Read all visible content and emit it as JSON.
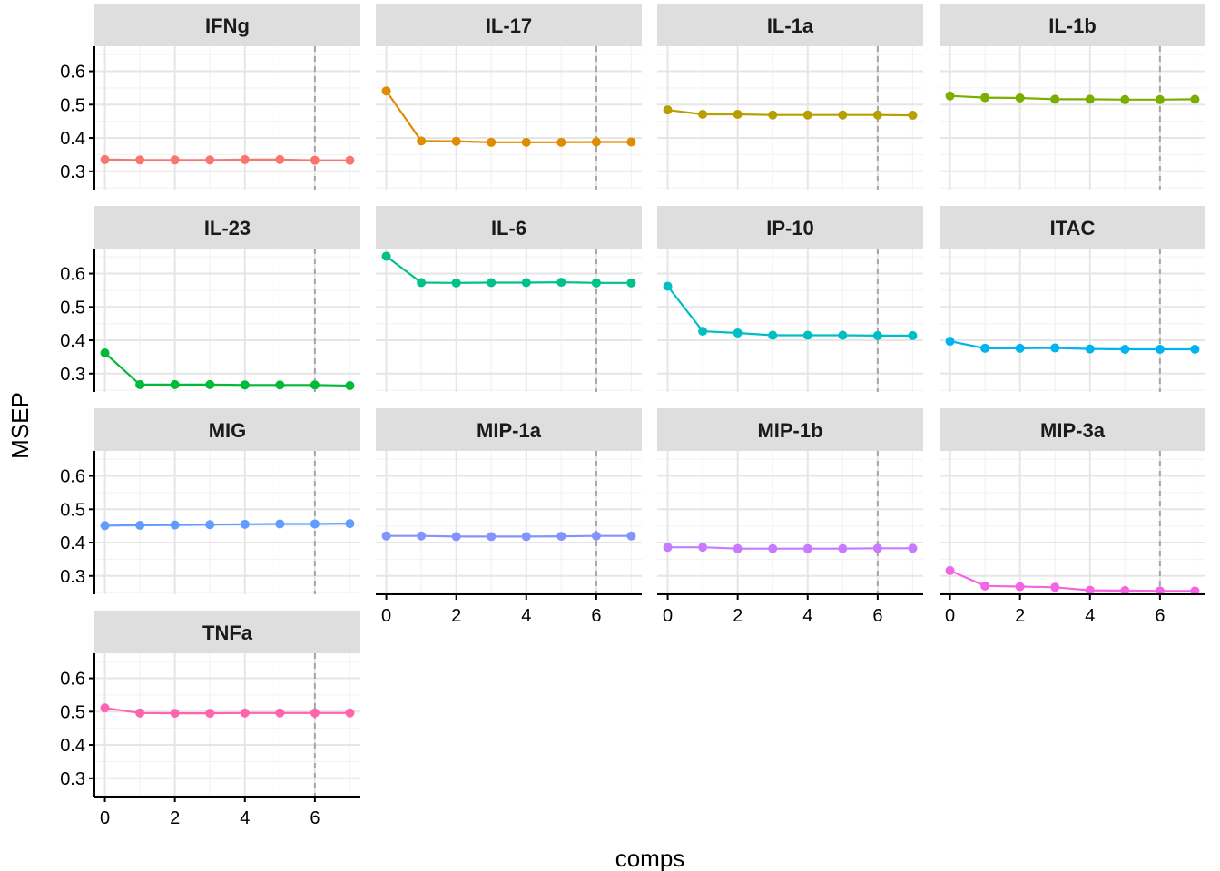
{
  "chart_data": {
    "type": "line",
    "xlabel": "comps",
    "ylabel": "MSEP",
    "xlim": [
      -0.3,
      7.3
    ],
    "ylim": [
      0.245,
      0.675
    ],
    "x_ticks": [
      0,
      2,
      4,
      6
    ],
    "y_ticks": [
      0.3,
      0.4,
      0.5,
      0.6
    ],
    "x_tick_labels": [
      "0",
      "2",
      "4",
      "6"
    ],
    "y_tick_labels": [
      "0.3",
      "0.4",
      "0.5",
      "0.6"
    ],
    "reference_line": {
      "x": 6,
      "style": "dashed",
      "color": "#a6a6a6"
    },
    "grid": true,
    "x": [
      0,
      1,
      2,
      3,
      4,
      5,
      6,
      7
    ],
    "panels": [
      {
        "name": "IFNg",
        "color": "#F8766D",
        "values": [
          0.335,
          0.334,
          0.334,
          0.334,
          0.335,
          0.335,
          0.333,
          0.333
        ]
      },
      {
        "name": "IL-17",
        "color": "#DE8C00",
        "values": [
          0.541,
          0.391,
          0.39,
          0.387,
          0.387,
          0.387,
          0.388,
          0.388
        ]
      },
      {
        "name": "IL-1a",
        "color": "#B79F00",
        "values": [
          0.484,
          0.471,
          0.471,
          0.469,
          0.469,
          0.469,
          0.469,
          0.468
        ]
      },
      {
        "name": "IL-1b",
        "color": "#7CAE00",
        "values": [
          0.526,
          0.521,
          0.52,
          0.516,
          0.516,
          0.515,
          0.515,
          0.516
        ]
      },
      {
        "name": "IL-23",
        "color": "#00BA38",
        "values": [
          0.362,
          0.267,
          0.267,
          0.267,
          0.266,
          0.266,
          0.266,
          0.264
        ]
      },
      {
        "name": "IL-6",
        "color": "#00C08B",
        "values": [
          0.652,
          0.573,
          0.572,
          0.573,
          0.573,
          0.574,
          0.572,
          0.572
        ]
      },
      {
        "name": "IP-10",
        "color": "#00BFC4",
        "values": [
          0.562,
          0.427,
          0.422,
          0.415,
          0.415,
          0.415,
          0.414,
          0.414
        ]
      },
      {
        "name": "ITAC",
        "color": "#00B4F0",
        "values": [
          0.397,
          0.376,
          0.376,
          0.377,
          0.374,
          0.373,
          0.373,
          0.373
        ]
      },
      {
        "name": "MIG",
        "color": "#619CFF",
        "values": [
          0.451,
          0.452,
          0.453,
          0.454,
          0.455,
          0.456,
          0.456,
          0.457
        ]
      },
      {
        "name": "MIP-1a",
        "color": "#8494FF",
        "values": [
          0.42,
          0.42,
          0.418,
          0.418,
          0.418,
          0.419,
          0.42,
          0.42
        ]
      },
      {
        "name": "MIP-1b",
        "color": "#C77CFF",
        "values": [
          0.386,
          0.386,
          0.382,
          0.382,
          0.382,
          0.382,
          0.383,
          0.383
        ]
      },
      {
        "name": "MIP-3a",
        "color": "#F564E3",
        "values": [
          0.316,
          0.27,
          0.268,
          0.266,
          0.257,
          0.256,
          0.255,
          0.255
        ]
      },
      {
        "name": "TNFa",
        "color": "#FF64B0",
        "values": [
          0.511,
          0.496,
          0.495,
          0.495,
          0.496,
          0.496,
          0.496,
          0.496
        ]
      }
    ]
  }
}
